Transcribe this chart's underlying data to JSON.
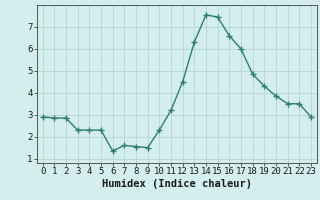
{
  "x": [
    0,
    1,
    2,
    3,
    4,
    5,
    6,
    7,
    8,
    9,
    10,
    11,
    12,
    13,
    14,
    15,
    16,
    17,
    18,
    19,
    20,
    21,
    22,
    23
  ],
  "y": [
    2.9,
    2.85,
    2.85,
    2.3,
    2.3,
    2.3,
    1.35,
    1.6,
    1.55,
    1.5,
    2.3,
    3.2,
    4.5,
    6.3,
    7.55,
    7.45,
    6.6,
    6.0,
    4.85,
    4.3,
    3.85,
    3.5,
    3.5,
    2.9
  ],
  "line_color": "#2e7d6e",
  "marker": "+",
  "marker_size": 4,
  "bg_color": "#d4eeee",
  "grid_color": "#b8d8d8",
  "xlabel": "Humidex (Indice chaleur)",
  "ylim": [
    0.8,
    8.0
  ],
  "xlim": [
    -0.5,
    23.5
  ],
  "yticks": [
    1,
    2,
    3,
    4,
    5,
    6,
    7
  ],
  "xticks": [
    0,
    1,
    2,
    3,
    4,
    5,
    6,
    7,
    8,
    9,
    10,
    11,
    12,
    13,
    14,
    15,
    16,
    17,
    18,
    19,
    20,
    21,
    22,
    23
  ],
  "xlabel_fontsize": 7.5,
  "tick_fontsize": 6.5,
  "line_width": 1.0
}
